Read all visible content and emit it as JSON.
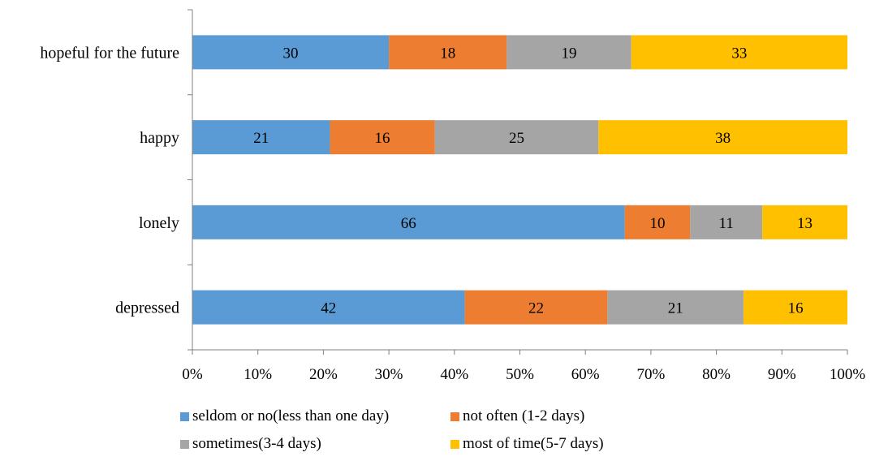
{
  "chart_data": {
    "type": "bar",
    "orientation": "horizontal",
    "stacked": true,
    "percent_stacked": true,
    "categories": [
      "depressed",
      "lonely",
      "happy",
      "hopeful for the future"
    ],
    "series": [
      {
        "name": "seldom or no(less than one day)",
        "color": "#5B9BD5",
        "values": [
          42,
          66,
          21,
          30
        ]
      },
      {
        "name": "not often (1-2 days)",
        "color": "#ED7D31",
        "values": [
          22,
          10,
          16,
          18
        ]
      },
      {
        "name": "sometimes(3-4 days)",
        "color": "#A5A5A5",
        "values": [
          21,
          11,
          25,
          19
        ]
      },
      {
        "name": "most of time(5-7 days)",
        "color": "#FFC000",
        "values": [
          16,
          13,
          38,
          33
        ]
      }
    ],
    "x_ticks": [
      "0%",
      "10%",
      "20%",
      "30%",
      "40%",
      "50%",
      "60%",
      "70%",
      "80%",
      "90%",
      "100%"
    ],
    "xlim": [
      0,
      100
    ],
    "grid": false,
    "legend_position": "bottom",
    "title": "",
    "xlabel": "",
    "ylabel": ""
  }
}
